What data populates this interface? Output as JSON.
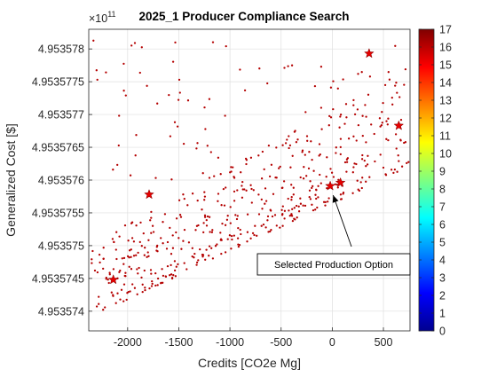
{
  "chart_data": {
    "type": "scatter",
    "title": "2025_1 Producer Compliance Search",
    "xlabel": "Credits [CO2e Mg]",
    "ylabel": "Generalized Cost [$]",
    "y_exponent_label": "×10",
    "y_exponent_power": "11",
    "xlim": [
      -2380,
      760
    ],
    "ylim": [
      495357.37,
      495357.83
    ],
    "y_scale_factor": 1000000,
    "x_ticks": [
      -2000,
      -1500,
      -1000,
      -500,
      0,
      500
    ],
    "x_tick_labels": [
      "-2000",
      "-1500",
      "-1000",
      "-500",
      "0",
      "500"
    ],
    "y_ticks": [
      495357.4,
      495357.45,
      495357.5,
      495357.55,
      495357.6,
      495357.65,
      495357.7,
      495357.75,
      495357.8
    ],
    "y_tick_labels": [
      "4.953574",
      "4.9535745",
      "4.953575",
      "4.9535755",
      "4.953576",
      "4.9535765",
      "4.953577",
      "4.9535775",
      "4.953578"
    ],
    "grid": true,
    "colormap": "jet",
    "colorbar": {
      "min": 0,
      "max": 17,
      "ticks": [
        0,
        1,
        2,
        3,
        4,
        5,
        6,
        7,
        8,
        9,
        10,
        11,
        12,
        13,
        14,
        15,
        16,
        17
      ],
      "tick_labels": [
        "0",
        "1",
        "2",
        "3",
        "4",
        "5",
        "6",
        "7",
        "8",
        "9",
        "10",
        "11",
        "12",
        "13",
        "14",
        "15",
        "16",
        "17"
      ]
    },
    "point_color": "#b40000",
    "star_color": "#e60000",
    "stars": [
      {
        "x": -2140,
        "y": 495357.448
      },
      {
        "x": -1790,
        "y": 495357.578
      },
      {
        "x": -20,
        "y": 495357.591
      },
      {
        "x": 80,
        "y": 495357.596
      },
      {
        "x": 360,
        "y": 495357.793
      },
      {
        "x": 650,
        "y": 495357.683
      }
    ],
    "annotation": {
      "text": "Selected Production Option",
      "arrow_from": {
        "x": 200,
        "y": 495357.52
      },
      "arrow_to": {
        "x": 0,
        "y": 495357.585
      }
    },
    "scatter_seed": 20251
  }
}
